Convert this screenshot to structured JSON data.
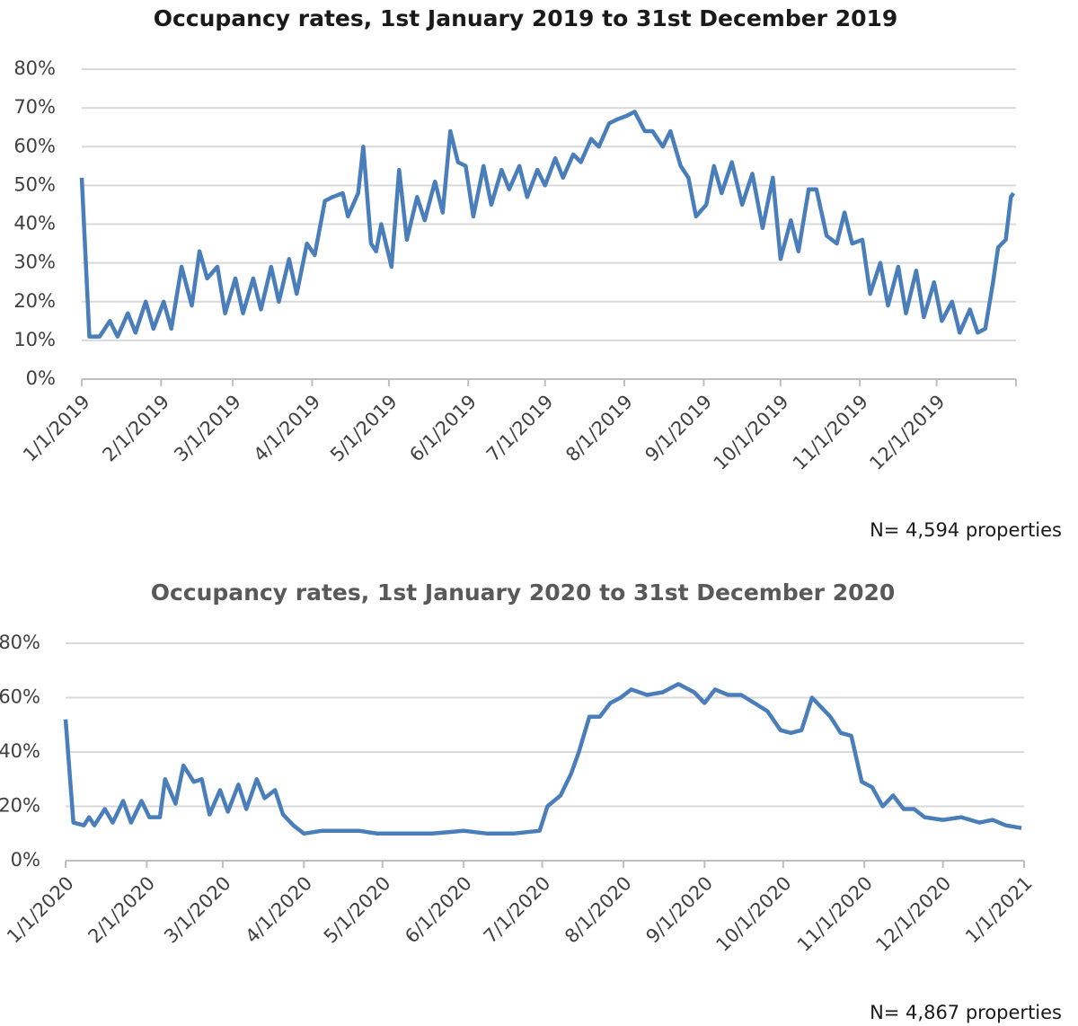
{
  "chart_data": [
    {
      "type": "line",
      "title": "Occupancy rates, 1st January 2019 to 31st December 2019",
      "annotation": "N= 4,594 properties",
      "x": [
        "2019-01-01",
        "2019-01-04",
        "2019-01-08",
        "2019-01-12",
        "2019-01-15",
        "2019-01-19",
        "2019-01-22",
        "2019-01-26",
        "2019-01-29",
        "2019-02-02",
        "2019-02-05",
        "2019-02-09",
        "2019-02-13",
        "2019-02-16",
        "2019-02-19",
        "2019-02-23",
        "2019-02-26",
        "2019-03-02",
        "2019-03-05",
        "2019-03-09",
        "2019-03-12",
        "2019-03-16",
        "2019-03-19",
        "2019-03-23",
        "2019-03-26",
        "2019-03-30",
        "2019-04-02",
        "2019-04-06",
        "2019-04-09",
        "2019-04-13",
        "2019-04-15",
        "2019-04-19",
        "2019-04-21",
        "2019-04-24",
        "2019-04-26",
        "2019-04-28",
        "2019-05-02",
        "2019-05-05",
        "2019-05-08",
        "2019-05-12",
        "2019-05-15",
        "2019-05-19",
        "2019-05-22",
        "2019-05-25",
        "2019-05-28",
        "2019-05-31",
        "2019-06-03",
        "2019-06-07",
        "2019-06-10",
        "2019-06-14",
        "2019-06-17",
        "2019-06-21",
        "2019-06-24",
        "2019-06-28",
        "2019-07-01",
        "2019-07-05",
        "2019-07-08",
        "2019-07-12",
        "2019-07-15",
        "2019-07-19",
        "2019-07-22",
        "2019-07-26",
        "2019-07-29",
        "2019-08-02",
        "2019-08-05",
        "2019-08-09",
        "2019-08-12",
        "2019-08-16",
        "2019-08-19",
        "2019-08-23",
        "2019-08-26",
        "2019-08-29",
        "2019-09-02",
        "2019-09-05",
        "2019-09-08",
        "2019-09-12",
        "2019-09-16",
        "2019-09-20",
        "2019-09-24",
        "2019-09-28",
        "2019-10-01",
        "2019-10-05",
        "2019-10-08",
        "2019-10-12",
        "2019-10-15",
        "2019-10-19",
        "2019-10-23",
        "2019-10-26",
        "2019-10-29",
        "2019-11-02",
        "2019-11-05",
        "2019-11-09",
        "2019-11-12",
        "2019-11-16",
        "2019-11-19",
        "2019-11-23",
        "2019-11-26",
        "2019-11-30",
        "2019-12-03",
        "2019-12-07",
        "2019-12-10",
        "2019-12-14",
        "2019-12-17",
        "2019-12-20",
        "2019-12-23",
        "2019-12-25",
        "2019-12-28",
        "2019-12-30",
        "2019-12-31"
      ],
      "series": [
        {
          "color": "#4a7ebb",
          "values": [
            52,
            11,
            11,
            15,
            11,
            17,
            12,
            20,
            13,
            20,
            13,
            29,
            19,
            33,
            26,
            29,
            17,
            26,
            17,
            26,
            18,
            29,
            20,
            31,
            22,
            35,
            32,
            46,
            47,
            48,
            42,
            48,
            60,
            35,
            33,
            40,
            29,
            54,
            36,
            47,
            41,
            51,
            43,
            64,
            56,
            55,
            42,
            55,
            45,
            54,
            49,
            55,
            47,
            54,
            50,
            57,
            52,
            58,
            56,
            62,
            60,
            66,
            67,
            68,
            69,
            64,
            64,
            60,
            64,
            55,
            52,
            42,
            45,
            55,
            48,
            56,
            45,
            53,
            39,
            52,
            31,
            41,
            33,
            49,
            49,
            37,
            35,
            43,
            35,
            36,
            22,
            30,
            19,
            29,
            17,
            28,
            16,
            25,
            15,
            20,
            12,
            18,
            12,
            13,
            25,
            34,
            36,
            47,
            48
          ]
        }
      ],
      "xlim": [
        "2019-01-01",
        "2020-01-01"
      ],
      "xticks": [
        {
          "value": "2019-01-01",
          "label": "1/1/2019"
        },
        {
          "value": "2019-02-01",
          "label": "2/1/2019"
        },
        {
          "value": "2019-03-01",
          "label": "3/1/2019"
        },
        {
          "value": "2019-04-01",
          "label": "4/1/2019"
        },
        {
          "value": "2019-05-01",
          "label": "5/1/2019"
        },
        {
          "value": "2019-06-01",
          "label": "6/1/2019"
        },
        {
          "value": "2019-07-01",
          "label": "7/1/2019"
        },
        {
          "value": "2019-08-01",
          "label": "8/1/2019"
        },
        {
          "value": "2019-09-01",
          "label": "9/1/2019"
        },
        {
          "value": "2019-10-01",
          "label": "10/1/2019"
        },
        {
          "value": "2019-11-01",
          "label": "11/1/2019"
        },
        {
          "value": "2019-12-01",
          "label": "12/1/2019"
        }
      ],
      "ylim": [
        0,
        80
      ],
      "yticks": [
        {
          "value": 0,
          "label": "0%"
        },
        {
          "value": 10,
          "label": "10%"
        },
        {
          "value": 20,
          "label": "20%"
        },
        {
          "value": 30,
          "label": "30%"
        },
        {
          "value": 40,
          "label": "40%"
        },
        {
          "value": 50,
          "label": "50%"
        },
        {
          "value": 60,
          "label": "60%"
        },
        {
          "value": 70,
          "label": "70%"
        },
        {
          "value": 80,
          "label": "80%"
        }
      ],
      "grid": true
    },
    {
      "type": "line",
      "title": "Occupancy rates, 1st January 2020 to 31st December 2020",
      "annotation": "N= 4,867 properties",
      "x": [
        "2020-01-01",
        "2020-01-04",
        "2020-01-08",
        "2020-01-10",
        "2020-01-12",
        "2020-01-16",
        "2020-01-19",
        "2020-01-23",
        "2020-01-26",
        "2020-01-30",
        "2020-02-02",
        "2020-02-06",
        "2020-02-08",
        "2020-02-12",
        "2020-02-15",
        "2020-02-19",
        "2020-02-22",
        "2020-02-25",
        "2020-02-29",
        "2020-03-03",
        "2020-03-07",
        "2020-03-10",
        "2020-03-14",
        "2020-03-17",
        "2020-03-21",
        "2020-03-24",
        "2020-03-28",
        "2020-04-01",
        "2020-04-08",
        "2020-04-15",
        "2020-04-22",
        "2020-04-29",
        "2020-05-10",
        "2020-05-20",
        "2020-06-01",
        "2020-06-10",
        "2020-06-20",
        "2020-06-30",
        "2020-07-03",
        "2020-07-08",
        "2020-07-12",
        "2020-07-15",
        "2020-07-19",
        "2020-07-23",
        "2020-07-27",
        "2020-07-31",
        "2020-08-04",
        "2020-08-10",
        "2020-08-16",
        "2020-08-22",
        "2020-08-28",
        "2020-09-01",
        "2020-09-05",
        "2020-09-10",
        "2020-09-15",
        "2020-09-20",
        "2020-09-25",
        "2020-09-30",
        "2020-10-04",
        "2020-10-08",
        "2020-10-12",
        "2020-10-16",
        "2020-10-19",
        "2020-10-23",
        "2020-10-27",
        "2020-10-31",
        "2020-11-04",
        "2020-11-08",
        "2020-11-12",
        "2020-11-16",
        "2020-11-20",
        "2020-11-24",
        "2020-12-01",
        "2020-12-08",
        "2020-12-15",
        "2020-12-20",
        "2020-12-25",
        "2020-12-31"
      ],
      "series": [
        {
          "color": "#4a7ebb",
          "values": [
            52,
            14,
            13,
            16,
            13,
            19,
            14,
            22,
            14,
            22,
            16,
            16,
            30,
            21,
            35,
            29,
            30,
            17,
            26,
            18,
            28,
            19,
            30,
            23,
            26,
            17,
            13,
            10,
            11,
            11,
            11,
            10,
            10,
            10,
            11,
            10,
            10,
            11,
            20,
            24,
            32,
            40,
            53,
            53,
            58,
            60,
            63,
            61,
            62,
            65,
            62,
            58,
            63,
            61,
            61,
            58,
            55,
            48,
            47,
            48,
            60,
            56,
            53,
            47,
            46,
            29,
            27,
            20,
            24,
            19,
            19,
            16,
            15,
            16,
            14,
            15,
            13,
            12
          ]
        }
      ],
      "xlim": [
        "2020-01-01",
        "2021-01-01"
      ],
      "xticks": [
        {
          "value": "2020-01-01",
          "label": "1/1/2020"
        },
        {
          "value": "2020-02-01",
          "label": "2/1/2020"
        },
        {
          "value": "2020-03-01",
          "label": "3/1/2020"
        },
        {
          "value": "2020-04-01",
          "label": "4/1/2020"
        },
        {
          "value": "2020-05-01",
          "label": "5/1/2020"
        },
        {
          "value": "2020-06-01",
          "label": "6/1/2020"
        },
        {
          "value": "2020-07-01",
          "label": "7/1/2020"
        },
        {
          "value": "2020-08-01",
          "label": "8/1/2020"
        },
        {
          "value": "2020-09-01",
          "label": "9/1/2020"
        },
        {
          "value": "2020-10-01",
          "label": "10/1/2020"
        },
        {
          "value": "2020-11-01",
          "label": "11/1/2020"
        },
        {
          "value": "2020-12-01",
          "label": "12/1/2020"
        },
        {
          "value": "2021-01-01",
          "label": "1/1/2021"
        }
      ],
      "ylim": [
        0,
        80
      ],
      "yticks": [
        {
          "value": 0,
          "label": "0%"
        },
        {
          "value": 20,
          "label": "20%"
        },
        {
          "value": 40,
          "label": "40%"
        },
        {
          "value": 60,
          "label": "60%"
        },
        {
          "value": 80,
          "label": "80%"
        }
      ],
      "grid": true
    }
  ]
}
